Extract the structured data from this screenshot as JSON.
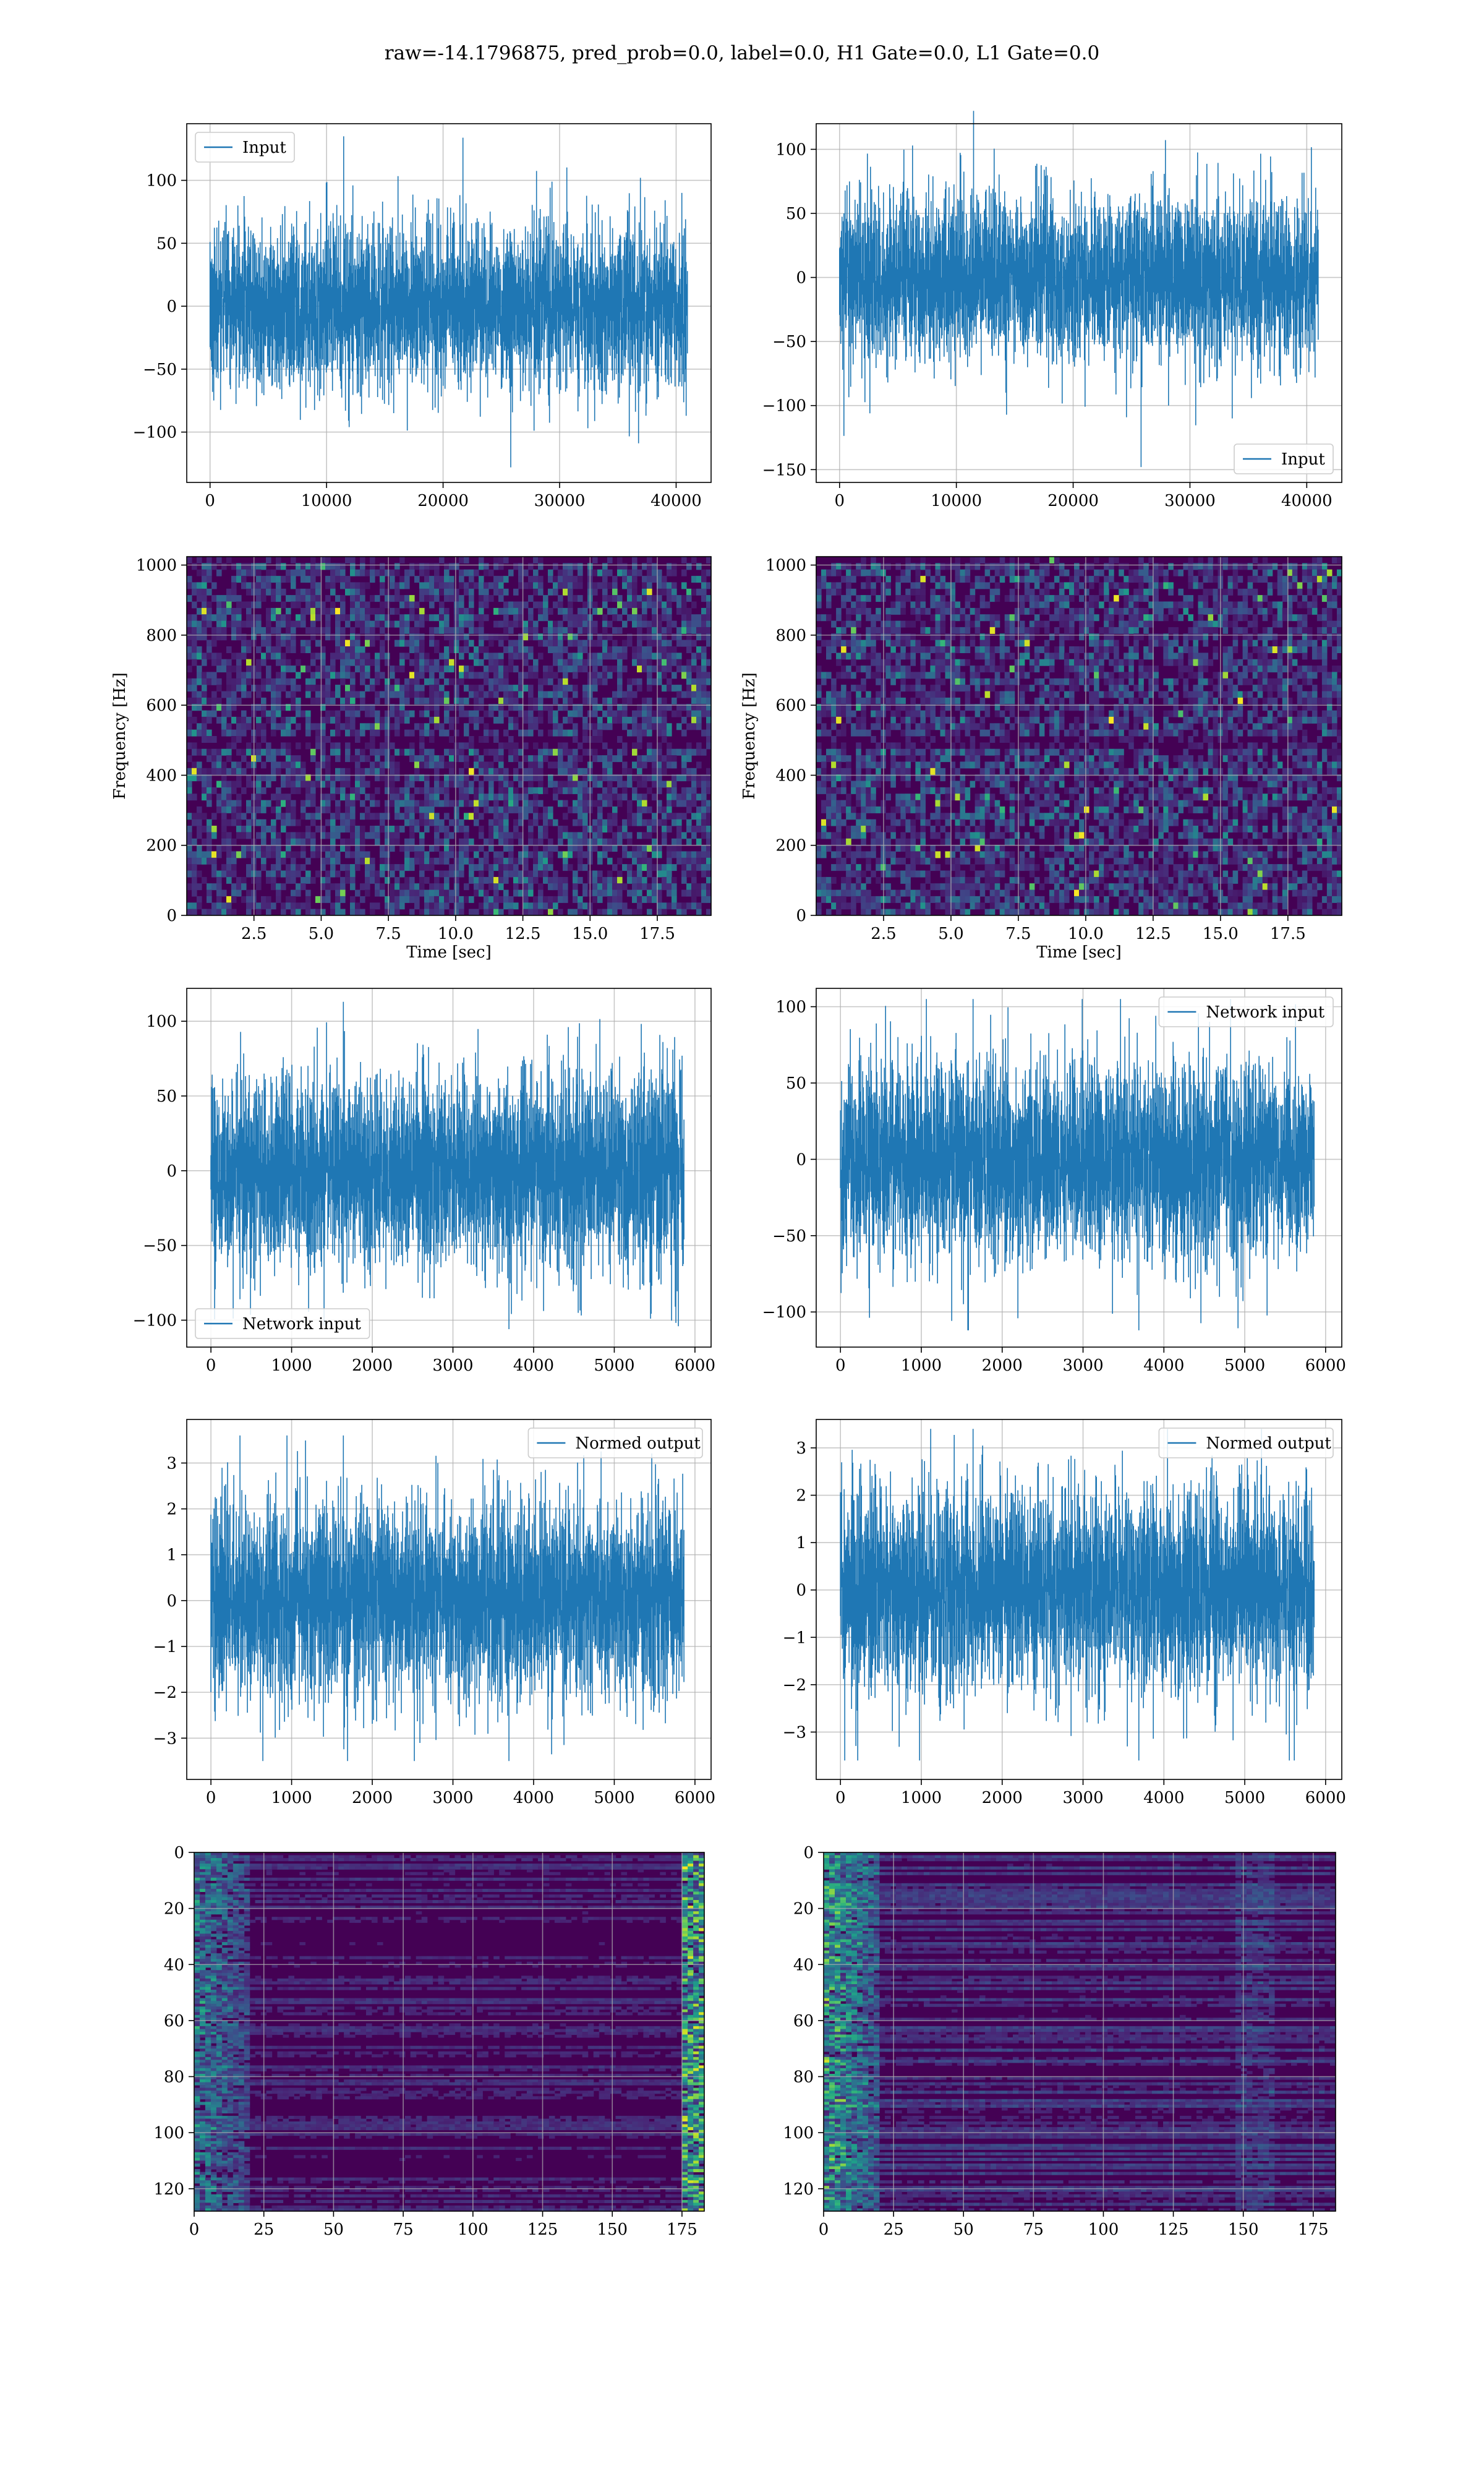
{
  "figure": {
    "title": "raw=-14.1796875, pred_prob=0.0, label=0.0, H1 Gate=0.0, L1 Gate=0.0"
  },
  "colors": {
    "line": "#1f77b4",
    "viridis_dark": "#440154",
    "grid": "#b0b0b0"
  },
  "chart_data": [
    {
      "id": "h1-input",
      "type": "line",
      "row": 1,
      "col": 1,
      "series": [
        {
          "name": "Input",
          "n_points": 40960,
          "amplitude_sigma": 30,
          "min": -128,
          "max": 135
        }
      ],
      "xlim": [
        -2000,
        43000
      ],
      "ylim": [
        -140,
        145
      ],
      "xticks": [
        0,
        10000,
        20000,
        30000,
        40000
      ],
      "yticks": [
        -100,
        -50,
        0,
        50,
        100
      ],
      "legend": {
        "label": "Input",
        "loc": "upper-left"
      },
      "grid": true,
      "xlabel": "",
      "ylabel": ""
    },
    {
      "id": "l1-input",
      "type": "line",
      "row": 1,
      "col": 2,
      "series": [
        {
          "name": "Input",
          "n_points": 40960,
          "amplitude_sigma": 30,
          "min": -148,
          "max": 130
        }
      ],
      "xlim": [
        -2000,
        43000
      ],
      "ylim": [
        -160,
        120
      ],
      "xticks": [
        0,
        10000,
        20000,
        30000,
        40000
      ],
      "yticks": [
        -150,
        -100,
        -50,
        0,
        50,
        100
      ],
      "legend": {
        "label": "Input",
        "loc": "lower-right"
      },
      "grid": true,
      "xlabel": "",
      "ylabel": ""
    },
    {
      "id": "h1-spectrogram",
      "type": "heatmap",
      "row": 2,
      "col": 1,
      "xlim": [
        0,
        19.5
      ],
      "ylim": [
        0,
        1024
      ],
      "xticks": [
        2.5,
        5.0,
        7.5,
        10.0,
        12.5,
        15.0,
        17.5
      ],
      "xtick_labels": [
        "2.5",
        "5.0",
        "7.5",
        "10.0",
        "12.5",
        "15.0",
        "17.5"
      ],
      "yticks": [
        0,
        200,
        400,
        600,
        800,
        1000
      ],
      "xlabel": "Time [sec]",
      "ylabel": "Frequency [Hz]",
      "colormap": "viridis",
      "grid": true
    },
    {
      "id": "l1-spectrogram",
      "type": "heatmap",
      "row": 2,
      "col": 2,
      "xlim": [
        0,
        19.5
      ],
      "ylim": [
        0,
        1024
      ],
      "xticks": [
        2.5,
        5.0,
        7.5,
        10.0,
        12.5,
        15.0,
        17.5
      ],
      "xtick_labels": [
        "2.5",
        "5.0",
        "7.5",
        "10.0",
        "12.5",
        "15.0",
        "17.5"
      ],
      "yticks": [
        0,
        200,
        400,
        600,
        800,
        1000
      ],
      "xlabel": "Time [sec]",
      "ylabel": "Frequency [Hz]",
      "colormap": "viridis",
      "grid": true
    },
    {
      "id": "h1-network-input",
      "type": "line",
      "row": 3,
      "col": 1,
      "series": [
        {
          "name": "Network input",
          "n_points": 5860,
          "amplitude_sigma": 30,
          "min": -106,
          "max": 113
        }
      ],
      "xlim": [
        -300,
        6200
      ],
      "ylim": [
        -118,
        122
      ],
      "xticks": [
        0,
        1000,
        2000,
        3000,
        4000,
        5000,
        6000
      ],
      "yticks": [
        -100,
        -50,
        0,
        50,
        100
      ],
      "legend": {
        "label": "Network input",
        "loc": "lower-left"
      },
      "grid": true,
      "xlabel": "",
      "ylabel": ""
    },
    {
      "id": "l1-network-input",
      "type": "line",
      "row": 3,
      "col": 2,
      "series": [
        {
          "name": "Network input",
          "n_points": 5860,
          "amplitude_sigma": 30,
          "min": -112,
          "max": 105
        }
      ],
      "xlim": [
        -300,
        6200
      ],
      "ylim": [
        -123,
        112
      ],
      "xticks": [
        0,
        1000,
        2000,
        3000,
        4000,
        5000,
        6000
      ],
      "yticks": [
        -100,
        -50,
        0,
        50,
        100
      ],
      "legend": {
        "label": "Network input",
        "loc": "upper-right"
      },
      "grid": true,
      "xlabel": "",
      "ylabel": ""
    },
    {
      "id": "h1-normed-output",
      "type": "line",
      "row": 4,
      "col": 1,
      "series": [
        {
          "name": "Normed output",
          "n_points": 5860,
          "amplitude_sigma": 1,
          "min": -3.5,
          "max": 3.6
        }
      ],
      "xlim": [
        -300,
        6200
      ],
      "ylim": [
        -3.9,
        3.95
      ],
      "xticks": [
        0,
        1000,
        2000,
        3000,
        4000,
        5000,
        6000
      ],
      "yticks": [
        -3,
        -2,
        -1,
        0,
        1,
        2,
        3
      ],
      "legend": {
        "label": "Normed output",
        "loc": "upper-right"
      },
      "grid": true,
      "xlabel": "",
      "ylabel": ""
    },
    {
      "id": "l1-normed-output",
      "type": "line",
      "row": 4,
      "col": 2,
      "series": [
        {
          "name": "Normed output",
          "n_points": 5860,
          "amplitude_sigma": 1,
          "min": -3.6,
          "max": 3.4
        }
      ],
      "xlim": [
        -300,
        6200
      ],
      "ylim": [
        -4.0,
        3.6
      ],
      "xticks": [
        0,
        1000,
        2000,
        3000,
        4000,
        5000,
        6000
      ],
      "yticks": [
        -3,
        -2,
        -1,
        0,
        1,
        2,
        3
      ],
      "legend": {
        "label": "Normed output",
        "loc": "upper-right"
      },
      "grid": true,
      "xlabel": "",
      "ylabel": ""
    },
    {
      "id": "h1-feature-map",
      "type": "heatmap",
      "row": 5,
      "col": 1,
      "xlim": [
        0,
        183
      ],
      "ylim": [
        128,
        0
      ],
      "xticks": [
        0,
        25,
        50,
        75,
        100,
        125,
        150,
        175
      ],
      "yticks": [
        0,
        20,
        40,
        60,
        80,
        100,
        120
      ],
      "colormap": "viridis",
      "grid": true,
      "xlabel": "",
      "ylabel": ""
    },
    {
      "id": "l1-feature-map",
      "type": "heatmap",
      "row": 5,
      "col": 2,
      "xlim": [
        0,
        183
      ],
      "ylim": [
        128,
        0
      ],
      "xticks": [
        0,
        25,
        50,
        75,
        100,
        125,
        150,
        175
      ],
      "yticks": [
        0,
        20,
        40,
        60,
        80,
        100,
        120
      ],
      "colormap": "viridis",
      "grid": true,
      "xlabel": "",
      "ylabel": ""
    }
  ]
}
